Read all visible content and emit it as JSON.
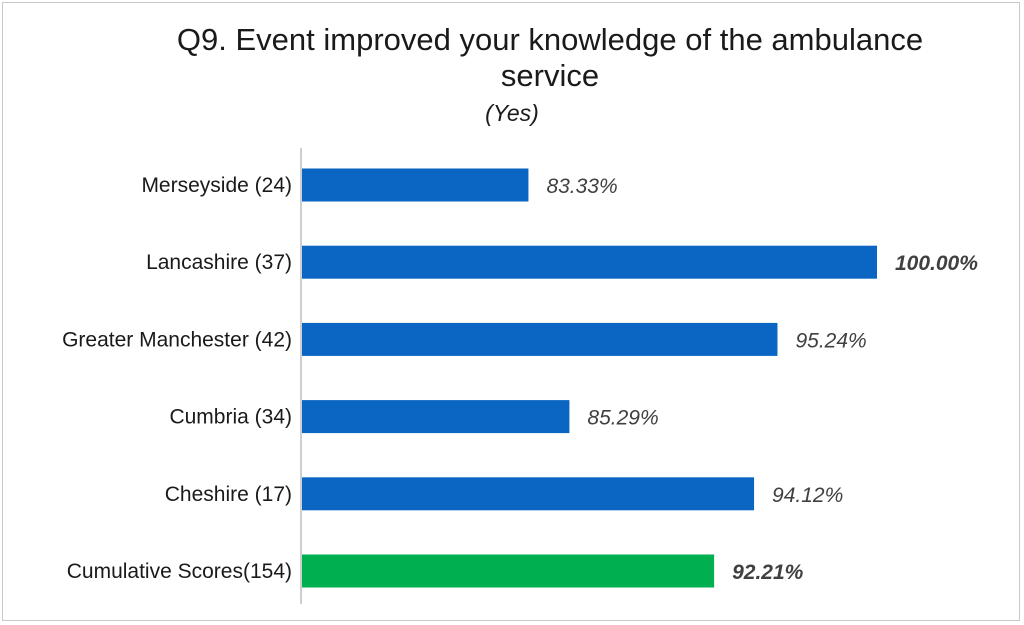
{
  "chart_data": {
    "type": "bar",
    "orientation": "horizontal",
    "title": "Q9. Event improved your knowledge of the ambulance service",
    "subtitle": "(Yes)",
    "categories": [
      "Merseyside  (24)",
      "Lancashire (37)",
      "Greater Manchester  (42)",
      "Cumbria (34)",
      "Cheshire (17)",
      "Cumulative Scores(154)"
    ],
    "values": [
      83.33,
      100.0,
      95.24,
      85.29,
      94.12,
      92.21
    ],
    "value_labels": [
      "83.33%",
      "100.00%",
      "95.24%",
      "85.29%",
      "94.12%",
      "92.21%"
    ],
    "bold_labels": [
      false,
      true,
      false,
      false,
      false,
      true
    ],
    "bar_colors": [
      "#0a66c2",
      "#0a66c2",
      "#0a66c2",
      "#0a66c2",
      "#0a66c2",
      "#00b050"
    ],
    "xlim": [
      72.5,
      100
    ],
    "grid": false,
    "legend": "none"
  }
}
